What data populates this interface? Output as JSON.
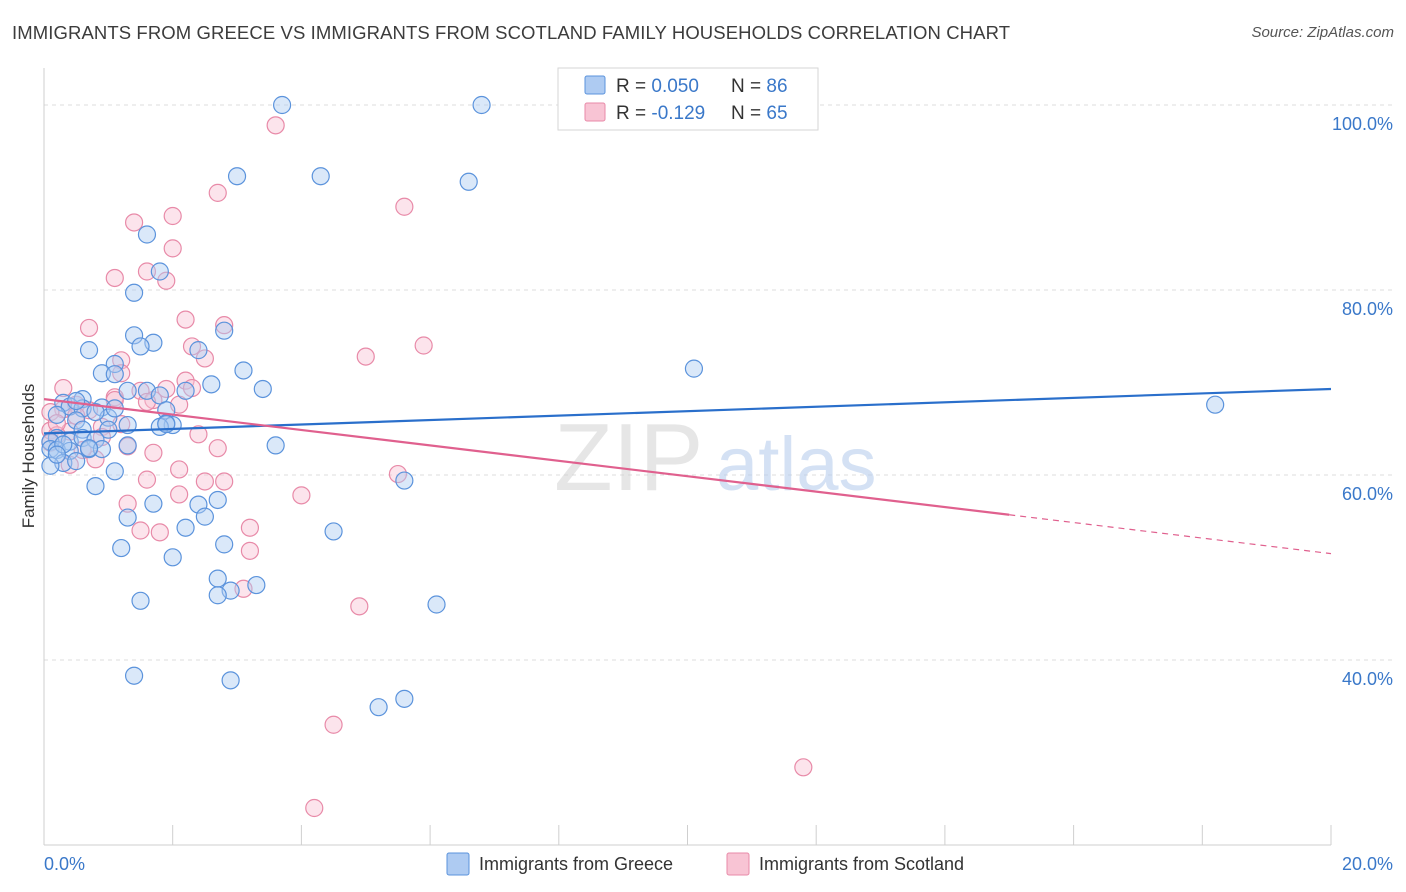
{
  "header": {
    "title": "IMMIGRANTS FROM GREECE VS IMMIGRANTS FROM SCOTLAND FAMILY HOUSEHOLDS CORRELATION CHART",
    "source": "Source: ZipAtlas.com"
  },
  "watermark": {
    "zip": "ZIP",
    "atlas": "atlas"
  },
  "colors": {
    "greece_fill": "#aecbf2",
    "greece_stroke": "#5b93dc",
    "greece_line": "#2a6fcb",
    "scotland_fill": "#f8c4d4",
    "scotland_stroke": "#e88aa8",
    "scotland_line": "#e0608e",
    "axis_label": "#3a78c9",
    "grid": "#dcdcdc"
  },
  "chart_data": {
    "type": "scatter",
    "title": "IMMIGRANTS FROM GREECE VS IMMIGRANTS FROM SCOTLAND FAMILY HOUSEHOLDS CORRELATION CHART",
    "xlabel": "",
    "ylabel": "Family Households",
    "xlim": [
      0,
      20
    ],
    "ylim": [
      20,
      104
    ],
    "x_tick_labels": {
      "left": "0.0%",
      "right": "20.0%"
    },
    "y_ticks": [
      {
        "value": 100,
        "label": "100.0%"
      },
      {
        "value": 80,
        "label": "80.0%"
      },
      {
        "value": 60,
        "label": "60.0%"
      },
      {
        "value": 40,
        "label": "40.0%"
      }
    ],
    "legend": [
      {
        "series": "greece",
        "r_label": "R = ",
        "r_value": "0.050",
        "n_label": "N = ",
        "n_value": "86"
      },
      {
        "series": "scotland",
        "r_label": "R = ",
        "r_value": "-0.129",
        "n_label": "N = ",
        "n_value": "65"
      }
    ],
    "bottom_legend": [
      {
        "series": "greece",
        "label": "Immigrants from Greece"
      },
      {
        "series": "scotland",
        "label": "Immigrants from Scotland"
      }
    ],
    "series": [
      {
        "name": "Immigrants from Greece",
        "key": "greece",
        "trend": {
          "x0": 0,
          "y0": 64.5,
          "x1": 20,
          "y1": 69.3
        },
        "points": [
          [
            3.7,
            100
          ],
          [
            6.8,
            100
          ],
          [
            3,
            92.3
          ],
          [
            4.3,
            92.3
          ],
          [
            6.6,
            91.7
          ],
          [
            1.6,
            86
          ],
          [
            1.4,
            79.7
          ],
          [
            1.8,
            82
          ],
          [
            2.8,
            75.6
          ],
          [
            1.4,
            75.1
          ],
          [
            1.7,
            74.3
          ],
          [
            1.5,
            73.9
          ],
          [
            0.7,
            73.5
          ],
          [
            2.4,
            73.5
          ],
          [
            3.1,
            71.3
          ],
          [
            1.1,
            72
          ],
          [
            0.9,
            71
          ],
          [
            1.1,
            70.9
          ],
          [
            1.3,
            69.1
          ],
          [
            2.6,
            69.8
          ],
          [
            3.4,
            69.3
          ],
          [
            1.6,
            69.1
          ],
          [
            2.2,
            69.1
          ],
          [
            1.8,
            68.6
          ],
          [
            0.6,
            68.2
          ],
          [
            0.3,
            67.8
          ],
          [
            0.4,
            67.4
          ],
          [
            0.6,
            67.2
          ],
          [
            0.9,
            67.3
          ],
          [
            1.9,
            67
          ],
          [
            1,
            66.2
          ],
          [
            0.5,
            65.9
          ],
          [
            1.9,
            65.6
          ],
          [
            2,
            65.4
          ],
          [
            1.8,
            65.2
          ],
          [
            0.6,
            64.9
          ],
          [
            1.3,
            65.4
          ],
          [
            1,
            64.9
          ],
          [
            0.2,
            64
          ],
          [
            0.1,
            63.6
          ],
          [
            0.4,
            63.6
          ],
          [
            0.6,
            64
          ],
          [
            0.8,
            63.8
          ],
          [
            1.3,
            63.2
          ],
          [
            3.6,
            63.2
          ],
          [
            0.1,
            62.8
          ],
          [
            0.2,
            62.7
          ],
          [
            0.4,
            62.6
          ],
          [
            0.7,
            62.8
          ],
          [
            0.9,
            62.8
          ],
          [
            0.3,
            61.3
          ],
          [
            0.1,
            61
          ],
          [
            1.1,
            60.4
          ],
          [
            0.8,
            58.8
          ],
          [
            5.6,
            59.4
          ],
          [
            1.7,
            56.9
          ],
          [
            2.4,
            56.8
          ],
          [
            2.7,
            57.3
          ],
          [
            2.5,
            55.5
          ],
          [
            1.3,
            55.4
          ],
          [
            2.2,
            54.3
          ],
          [
            4.5,
            53.9
          ],
          [
            2.8,
            52.5
          ],
          [
            1.2,
            52.1
          ],
          [
            2,
            51.1
          ],
          [
            2.7,
            48.8
          ],
          [
            3.3,
            48.1
          ],
          [
            2.9,
            47.5
          ],
          [
            2.7,
            47
          ],
          [
            6.1,
            46
          ],
          [
            1.5,
            46.4
          ],
          [
            1.4,
            38.3
          ],
          [
            2.9,
            37.8
          ],
          [
            5.6,
            35.8
          ],
          [
            5.2,
            34.9
          ],
          [
            10.1,
            71.5
          ],
          [
            18.2,
            67.6
          ],
          [
            0.5,
            68
          ],
          [
            0.2,
            66.5
          ],
          [
            1.1,
            67.2
          ],
          [
            0.7,
            62.9
          ],
          [
            0.3,
            63.3
          ],
          [
            0.5,
            61.5
          ],
          [
            1.9,
            65.5
          ],
          [
            0.2,
            62.2
          ],
          [
            0.8,
            66.8
          ]
        ]
      },
      {
        "name": "Immigrants from Scotland",
        "key": "scotland",
        "trend": {
          "x0": 0,
          "y0": 68.2,
          "x1": 15,
          "y1": 55.7
        },
        "trend_dashed": {
          "x0": 15,
          "y0": 55.7,
          "x1": 20,
          "y1": 51.5
        },
        "points": [
          [
            3.6,
            97.8
          ],
          [
            2.7,
            90.5
          ],
          [
            5.6,
            89
          ],
          [
            2,
            88
          ],
          [
            1.4,
            87.3
          ],
          [
            2,
            84.5
          ],
          [
            1.6,
            82
          ],
          [
            1.1,
            81.3
          ],
          [
            1.9,
            81
          ],
          [
            2.2,
            76.8
          ],
          [
            2.8,
            76.2
          ],
          [
            0.7,
            75.9
          ],
          [
            5.9,
            74
          ],
          [
            2.3,
            73.9
          ],
          [
            5,
            72.8
          ],
          [
            2.5,
            72.6
          ],
          [
            1.2,
            72.4
          ],
          [
            1.2,
            71
          ],
          [
            2.2,
            70.2
          ],
          [
            2.3,
            69.4
          ],
          [
            1.9,
            69.3
          ],
          [
            0.3,
            69.4
          ],
          [
            1.5,
            69.1
          ],
          [
            1.1,
            68.4
          ],
          [
            1.7,
            68.1
          ],
          [
            0.5,
            67.6
          ],
          [
            0.3,
            67.1
          ],
          [
            0.7,
            67
          ],
          [
            0.1,
            66.8
          ],
          [
            1.2,
            65.5
          ],
          [
            0.9,
            65.2
          ],
          [
            0.1,
            64.8
          ],
          [
            0.4,
            64.7
          ],
          [
            0.2,
            64.3
          ],
          [
            2.4,
            64.4
          ],
          [
            0.1,
            63.5
          ],
          [
            1.3,
            63.1
          ],
          [
            2.7,
            62.9
          ],
          [
            1.7,
            62.4
          ],
          [
            0.8,
            61.7
          ],
          [
            0.4,
            61.1
          ],
          [
            2.1,
            60.6
          ],
          [
            5.5,
            60.1
          ],
          [
            1.6,
            59.5
          ],
          [
            2.5,
            59.3
          ],
          [
            2.8,
            59.3
          ],
          [
            2.1,
            57.9
          ],
          [
            4,
            57.8
          ],
          [
            1.3,
            56.9
          ],
          [
            3.2,
            54.3
          ],
          [
            1.5,
            54
          ],
          [
            1.8,
            53.8
          ],
          [
            3.2,
            51.8
          ],
          [
            3.1,
            47.7
          ],
          [
            4.9,
            45.8
          ],
          [
            4.5,
            33
          ],
          [
            4.2,
            24
          ],
          [
            11.8,
            28.4
          ],
          [
            0.6,
            62.7
          ],
          [
            0.2,
            65.6
          ],
          [
            0.9,
            64.1
          ],
          [
            1.1,
            68.1
          ],
          [
            0.5,
            66.4
          ],
          [
            1.6,
            67.9
          ],
          [
            2.1,
            67.6
          ]
        ]
      }
    ]
  }
}
